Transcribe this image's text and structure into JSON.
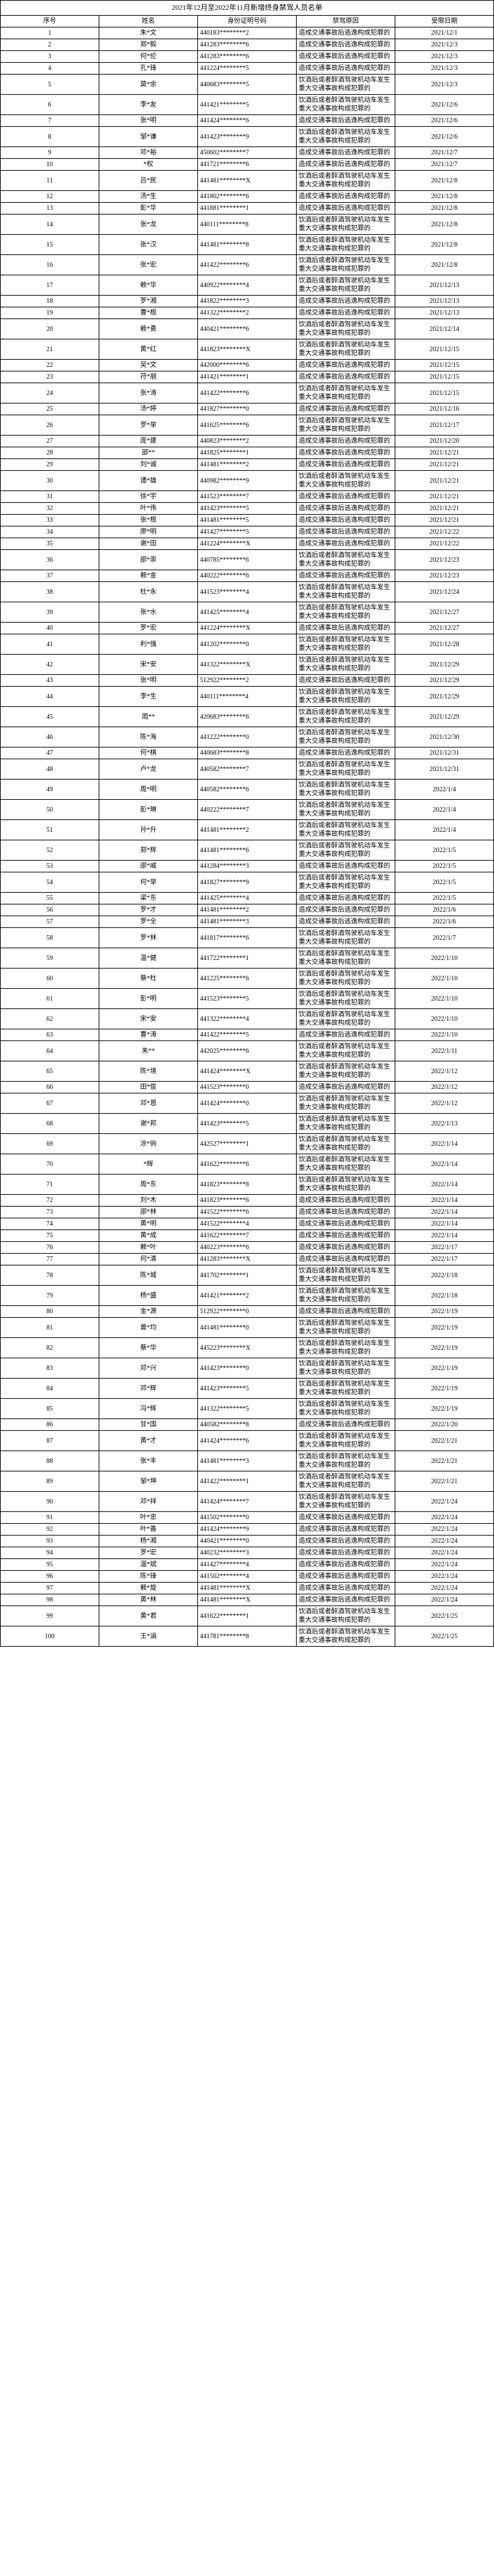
{
  "title": "2021年12月至2022年11月新增终身禁驾人员名单",
  "columns": [
    "序号",
    "姓名",
    "身份证明号码",
    "禁驾原因",
    "受限日期"
  ],
  "colWidths": [
    "32px",
    "40px",
    "140px",
    "",
    "72px"
  ],
  "reasons": {
    "A": "造成交通事故后逃逸构成犯罪的",
    "B": "饮酒后或者醉酒驾驶机动车发生重大交通事故构成犯罪的"
  },
  "style": {
    "fontFamily": "SimSun",
    "fontSize": 10,
    "borderColor": "#000000",
    "background": "#ffffff"
  },
  "rows": [
    {
      "seq": "1",
      "name": "朱*文",
      "id": "440183********2",
      "reason": "A",
      "date": "2021/12/1"
    },
    {
      "seq": "2",
      "name": "郑*毅",
      "id": "441283********6",
      "reason": "A",
      "date": "2021/12/3"
    },
    {
      "seq": "3",
      "name": "何*伦",
      "id": "441283********6",
      "reason": "A",
      "date": "2021/12/3"
    },
    {
      "seq": "4",
      "name": "孔*锋",
      "id": "441224********5",
      "reason": "A",
      "date": "2021/12/3"
    },
    {
      "seq": "5",
      "name": "莫*余",
      "id": "440683********5",
      "reason": "B",
      "date": "2021/12/3"
    },
    {
      "seq": "6",
      "name": "李*友",
      "id": "441421********5",
      "reason": "B",
      "date": "2021/12/6"
    },
    {
      "seq": "7",
      "name": "张*明",
      "id": "441424********6",
      "reason": "A",
      "date": "2021/12/6"
    },
    {
      "seq": "8",
      "name": "邹*谦",
      "id": "441423********9",
      "reason": "B",
      "date": "2021/12/6"
    },
    {
      "seq": "9",
      "name": "邓*裕",
      "id": "450602********7",
      "reason": "A",
      "date": "2021/12/7"
    },
    {
      "seq": "10",
      "name": "*权",
      "id": "441721********6",
      "reason": "A",
      "date": "2021/12/7"
    },
    {
      "seq": "11",
      "name": "吕*民",
      "id": "441481********X",
      "reason": "B",
      "date": "2021/12/8"
    },
    {
      "seq": "12",
      "name": "汤*生",
      "id": "441802********6",
      "reason": "A",
      "date": "2021/12/8"
    },
    {
      "seq": "13",
      "name": "彭*华",
      "id": "441881********1",
      "reason": "A",
      "date": "2021/12/8"
    },
    {
      "seq": "14",
      "name": "张*龙",
      "id": "440111********8",
      "reason": "B",
      "date": "2021/12/8"
    },
    {
      "seq": "15",
      "name": "张*汉",
      "id": "441481********8",
      "reason": "B",
      "date": "2021/12/8"
    },
    {
      "seq": "16",
      "name": "张*宏",
      "id": "441422********6",
      "reason": "B",
      "date": "2021/12/8"
    },
    {
      "seq": "17",
      "name": "赖*华",
      "id": "440922********4",
      "reason": "B",
      "date": "2021/12/13"
    },
    {
      "seq": "18",
      "name": "罗*湘",
      "id": "441822********3",
      "reason": "A",
      "date": "2021/12/13"
    },
    {
      "seq": "19",
      "name": "曹*根",
      "id": "441322********2",
      "reason": "A",
      "date": "2021/12/13"
    },
    {
      "seq": "20",
      "name": "赖*勇",
      "id": "440421********6",
      "reason": "B",
      "date": "2021/12/14"
    },
    {
      "seq": "21",
      "name": "黄*红",
      "id": "441823********X",
      "reason": "B",
      "date": "2021/12/15"
    },
    {
      "seq": "22",
      "name": "吴*文",
      "id": "442000********6",
      "reason": "A",
      "date": "2021/12/15"
    },
    {
      "seq": "23",
      "name": "苻*朋",
      "id": "441421********1",
      "reason": "A",
      "date": "2021/12/15"
    },
    {
      "seq": "24",
      "name": "张*涛",
      "id": "441422********6",
      "reason": "B",
      "date": "2021/12/15"
    },
    {
      "seq": "25",
      "name": "汤*婷",
      "id": "441827********0",
      "reason": "A",
      "date": "2021/12/16"
    },
    {
      "seq": "26",
      "name": "罗*举",
      "id": "441625********6",
      "reason": "B",
      "date": "2021/12/17"
    },
    {
      "seq": "27",
      "name": "庞*建",
      "id": "440823********2",
      "reason": "A",
      "date": "2021/12/20"
    },
    {
      "seq": "28",
      "name": "邵**",
      "id": "441825********1",
      "reason": "A",
      "date": "2021/12/21"
    },
    {
      "seq": "29",
      "name": "刘*诚",
      "id": "441481********2",
      "reason": "A",
      "date": "2021/12/21"
    },
    {
      "seq": "30",
      "name": "谭*雄",
      "id": "440982********9",
      "reason": "B",
      "date": "2021/12/21"
    },
    {
      "seq": "31",
      "name": "徐*宇",
      "id": "441523********7",
      "reason": "A",
      "date": "2021/12/21"
    },
    {
      "seq": "32",
      "name": "叶*伟",
      "id": "441423********5",
      "reason": "A",
      "date": "2021/12/21"
    },
    {
      "seq": "33",
      "name": "张*根",
      "id": "441481********5",
      "reason": "A",
      "date": "2021/12/21"
    },
    {
      "seq": "34",
      "name": "廖*明",
      "id": "441427********5",
      "reason": "A",
      "date": "2021/12/22"
    },
    {
      "seq": "35",
      "name": "谢*田",
      "id": "441224********X",
      "reason": "A",
      "date": "2021/12/22"
    },
    {
      "seq": "36",
      "name": "邵*崇",
      "id": "440785********6",
      "reason": "B",
      "date": "2021/12/23"
    },
    {
      "seq": "37",
      "name": "赖*金",
      "id": "440222********6",
      "reason": "A",
      "date": "2021/12/23"
    },
    {
      "seq": "38",
      "name": "杜*永",
      "id": "441523********4",
      "reason": "B",
      "date": "2021/12/24"
    },
    {
      "seq": "39",
      "name": "张*水",
      "id": "441425********4",
      "reason": "B",
      "date": "2021/12/27"
    },
    {
      "seq": "40",
      "name": "罗*宏",
      "id": "441224********X",
      "reason": "A",
      "date": "2021/12/27"
    },
    {
      "seq": "41",
      "name": "利*强",
      "id": "441202********0",
      "reason": "B",
      "date": "2021/12/28"
    },
    {
      "seq": "42",
      "name": "宋*安",
      "id": "441322********X",
      "reason": "B",
      "date": "2021/12/29"
    },
    {
      "seq": "43",
      "name": "张*明",
      "id": "512922********2",
      "reason": "A",
      "date": "2021/12/29"
    },
    {
      "seq": "44",
      "name": "李*生",
      "id": "440111********4",
      "reason": "B",
      "date": "2021/12/29"
    },
    {
      "seq": "45",
      "name": "周**",
      "id": "420683********6",
      "reason": "B",
      "date": "2021/12/29"
    },
    {
      "seq": "46",
      "name": "陈*海",
      "id": "441222********0",
      "reason": "B",
      "date": "2021/12/30"
    },
    {
      "seq": "47",
      "name": "何*棋",
      "id": "440683********8",
      "reason": "A",
      "date": "2021/12/31"
    },
    {
      "seq": "48",
      "name": "卢*龙",
      "id": "440582********7",
      "reason": "B",
      "date": "2021/12/31"
    },
    {
      "seq": "49",
      "name": "周*明",
      "id": "440582********6",
      "reason": "B",
      "date": "2022/1/4"
    },
    {
      "seq": "50",
      "name": "彭*琳",
      "id": "440222********7",
      "reason": "B",
      "date": "2022/1/4"
    },
    {
      "seq": "51",
      "name": "孙*升",
      "id": "441481********2",
      "reason": "B",
      "date": "2022/1/4"
    },
    {
      "seq": "52",
      "name": "郑*辉",
      "id": "441481********6",
      "reason": "B",
      "date": "2022/1/5"
    },
    {
      "seq": "53",
      "name": "邵*威",
      "id": "441284********3",
      "reason": "A",
      "date": "2022/1/5"
    },
    {
      "seq": "54",
      "name": "何*举",
      "id": "441827********9",
      "reason": "B",
      "date": "2022/1/5"
    },
    {
      "seq": "55",
      "name": "梁*东",
      "id": "441425********4",
      "reason": "A",
      "date": "2022/1/5"
    },
    {
      "seq": "56",
      "name": "罗*才",
      "id": "441481********2",
      "reason": "A",
      "date": "2022/1/6"
    },
    {
      "seq": "57",
      "name": "罗*全",
      "id": "441481********3",
      "reason": "A",
      "date": "2022/1/6"
    },
    {
      "seq": "58",
      "name": "罗*林",
      "id": "441817********6",
      "reason": "B",
      "date": "2022/1/7"
    },
    {
      "seq": "59",
      "name": "温*健",
      "id": "441722********1",
      "reason": "B",
      "date": "2022/1/10"
    },
    {
      "seq": "60",
      "name": "蔡*杜",
      "id": "441225********6",
      "reason": "B",
      "date": "2022/1/10"
    },
    {
      "seq": "61",
      "name": "彭*明",
      "id": "441523********5",
      "reason": "B",
      "date": "2022/1/10"
    },
    {
      "seq": "62",
      "name": "宋*安",
      "id": "441322********4",
      "reason": "B",
      "date": "2022/1/10"
    },
    {
      "seq": "63",
      "name": "曹*涛",
      "id": "441422********5",
      "reason": "A",
      "date": "2022/1/10"
    },
    {
      "seq": "64",
      "name": "朱**",
      "id": "442025********6",
      "reason": "B",
      "date": "2022/1/11"
    },
    {
      "seq": "65",
      "name": "陈*境",
      "id": "441424********X",
      "reason": "B",
      "date": "2022/1/12"
    },
    {
      "seq": "66",
      "name": "田*俊",
      "id": "441523********0",
      "reason": "A",
      "date": "2022/1/12"
    },
    {
      "seq": "67",
      "name": "邓*恩",
      "id": "441424********0",
      "reason": "B",
      "date": "2022/1/12"
    },
    {
      "seq": "68",
      "name": "谢*邦",
      "id": "441423********5",
      "reason": "B",
      "date": "2022/1/13"
    },
    {
      "seq": "69",
      "name": "涂*驹",
      "id": "442527********1",
      "reason": "B",
      "date": "2022/1/14"
    },
    {
      "seq": "70",
      "name": "*辉",
      "id": "441622********6",
      "reason": "B",
      "date": "2022/1/14"
    },
    {
      "seq": "71",
      "name": "周*东",
      "id": "441823********8",
      "reason": "B",
      "date": "2022/1/14"
    },
    {
      "seq": "72",
      "name": "刘*木",
      "id": "441823********6",
      "reason": "A",
      "date": "2022/1/14"
    },
    {
      "seq": "73",
      "name": "邵*林",
      "id": "441522********6",
      "reason": "A",
      "date": "2022/1/14"
    },
    {
      "seq": "74",
      "name": "黄*明",
      "id": "441522********4",
      "reason": "A",
      "date": "2022/1/14"
    },
    {
      "seq": "75",
      "name": "黄*成",
      "id": "441622********7",
      "reason": "A",
      "date": "2022/1/14"
    },
    {
      "seq": "76",
      "name": "赖*叶",
      "id": "440223********6",
      "reason": "A",
      "date": "2022/1/17"
    },
    {
      "seq": "77",
      "name": "何*清",
      "id": "441283********X",
      "reason": "A",
      "date": "2022/1/17"
    },
    {
      "seq": "78",
      "name": "陈*城",
      "id": "441702********1",
      "reason": "B",
      "date": "2022/1/18"
    },
    {
      "seq": "79",
      "name": "杨*盛",
      "id": "441421********2",
      "reason": "B",
      "date": "2022/1/18"
    },
    {
      "seq": "80",
      "name": "金*源",
      "id": "512922********0",
      "reason": "A",
      "date": "2022/1/19"
    },
    {
      "seq": "81",
      "name": "曾*均",
      "id": "441481********0",
      "reason": "B",
      "date": "2022/1/19"
    },
    {
      "seq": "82",
      "name": "蔡*华",
      "id": "445223********X",
      "reason": "B",
      "date": "2022/1/19"
    },
    {
      "seq": "83",
      "name": "邓*兴",
      "id": "441423********0",
      "reason": "B",
      "date": "2022/1/19"
    },
    {
      "seq": "84",
      "name": "邓*辉",
      "id": "441423********5",
      "reason": "B",
      "date": "2022/1/19"
    },
    {
      "seq": "85",
      "name": "冯*辉",
      "id": "441322********5",
      "reason": "B",
      "date": "2022/1/19"
    },
    {
      "seq": "86",
      "name": "甘*国",
      "id": "440582********8",
      "reason": "A",
      "date": "2022/1/20"
    },
    {
      "seq": "87",
      "name": "黄*才",
      "id": "441424********6",
      "reason": "B",
      "date": "2022/1/21"
    },
    {
      "seq": "88",
      "name": "张*丰",
      "id": "441481********3",
      "reason": "B",
      "date": "2022/1/21"
    },
    {
      "seq": "89",
      "name": "邹*坤",
      "id": "441422********1",
      "reason": "B",
      "date": "2022/1/21"
    },
    {
      "seq": "90",
      "name": "邓*祥",
      "id": "441424********7",
      "reason": "B",
      "date": "2022/1/24"
    },
    {
      "seq": "91",
      "name": "叶*忠",
      "id": "441502********0",
      "reason": "A",
      "date": "2022/1/24"
    },
    {
      "seq": "92",
      "name": "叶*善",
      "id": "441424********9",
      "reason": "A",
      "date": "2022/1/24"
    },
    {
      "seq": "93",
      "name": "杨*湘",
      "id": "440421********0",
      "reason": "A",
      "date": "2022/1/24"
    },
    {
      "seq": "94",
      "name": "罗*宏",
      "id": "440232********3",
      "reason": "A",
      "date": "2022/1/24"
    },
    {
      "seq": "95",
      "name": "温*斌",
      "id": "441427********4",
      "reason": "A",
      "date": "2022/1/24"
    },
    {
      "seq": "96",
      "name": "陈*锋",
      "id": "441502********4",
      "reason": "A",
      "date": "2022/1/24"
    },
    {
      "seq": "97",
      "name": "赖*旋",
      "id": "441481********X",
      "reason": "A",
      "date": "2022/1/24"
    },
    {
      "seq": "98",
      "name": "黄*林",
      "id": "441481********X",
      "reason": "A",
      "date": "2022/1/24"
    },
    {
      "seq": "99",
      "name": "黄*君",
      "id": "441622********1",
      "reason": "B",
      "date": "2022/1/25"
    },
    {
      "seq": "100",
      "name": "王*涵",
      "id": "441781********8",
      "reason": "B",
      "date": "2022/1/25"
    }
  ]
}
